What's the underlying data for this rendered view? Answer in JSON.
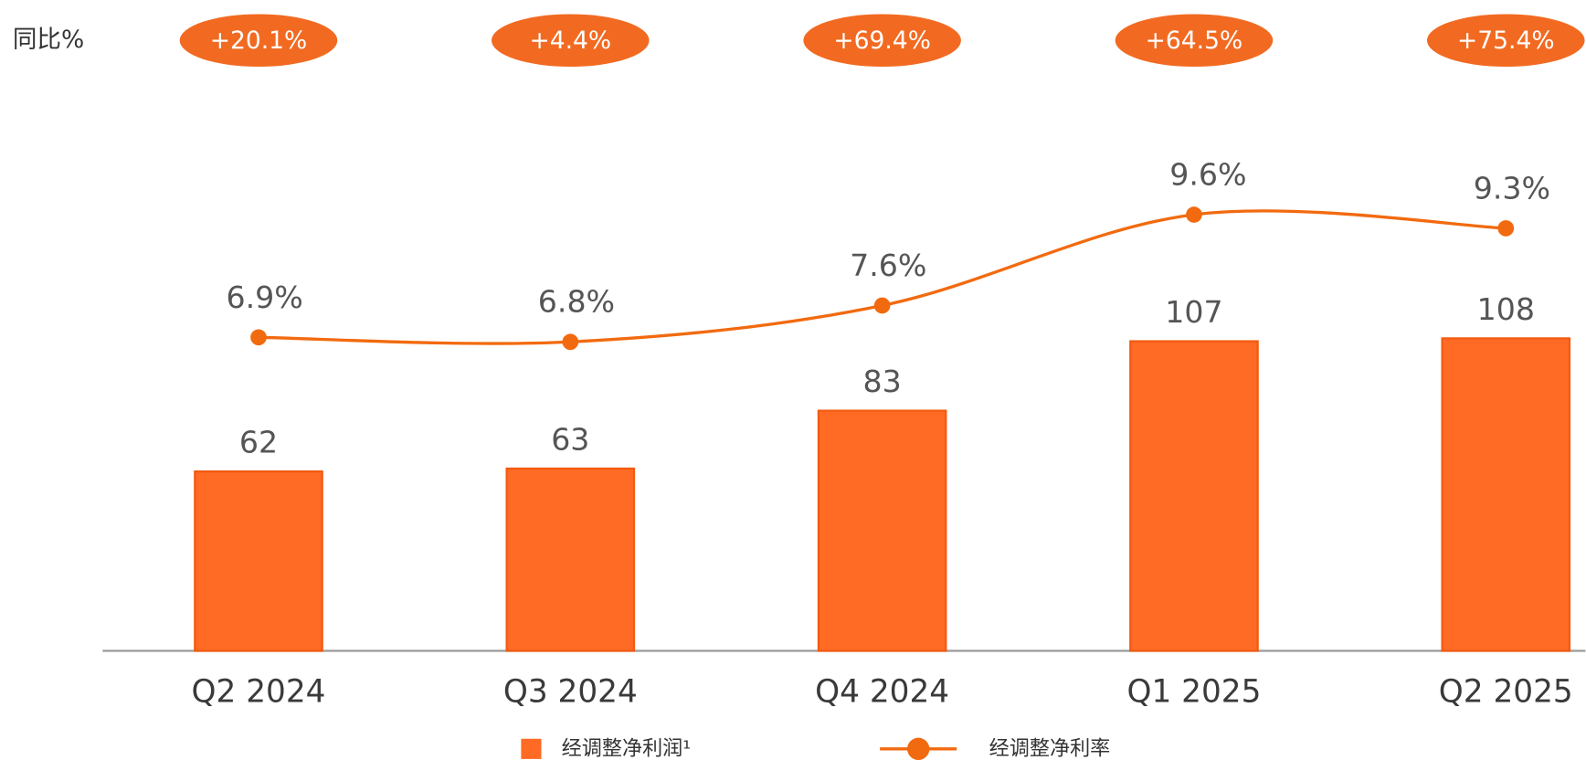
{
  "chart_data": {
    "type": "bar",
    "yoy_label": "同比%",
    "categories": [
      "Q2 2024",
      "Q3 2024",
      "Q4 2024",
      "Q1 2025",
      "Q2 2025"
    ],
    "yoy": {
      "values": [
        20.1,
        4.4,
        69.4,
        64.5,
        75.4
      ],
      "value_labels": [
        "+20.1%",
        "+4.4%",
        "+69.4%",
        "+64.5%",
        "+75.4%"
      ],
      "color": "#f26a21"
    },
    "ylim": [
      0,
      190
    ],
    "y2lim": [
      0,
      12.1
    ],
    "series": [
      {
        "name": "经调整净利润¹",
        "type": "bar",
        "color": "#ff6a24",
        "values": [
          62,
          63,
          83,
          107,
          108
        ]
      },
      {
        "name": "经调整净利率",
        "type": "line",
        "axis": "y2",
        "color": "#f26a0f",
        "values": [
          6.9,
          6.8,
          7.6,
          9.6,
          9.3
        ],
        "value_labels": [
          "6.9%",
          "6.8%",
          "7.6%",
          "9.6%",
          "9.3%"
        ]
      }
    ]
  }
}
